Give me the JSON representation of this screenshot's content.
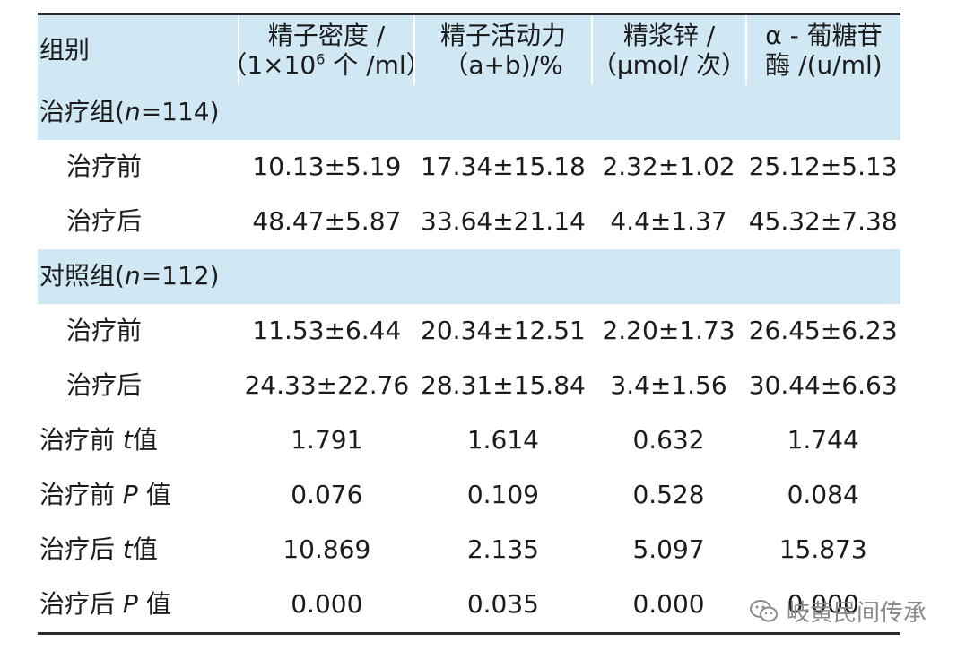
{
  "table": {
    "header": {
      "group": "组别",
      "col1_line1": "精子密度 /",
      "col1_line2_prefix": "（1×10",
      "col1_exp": "6",
      "col1_line2_suffix": " 个 /ml）",
      "col2_line1": "精子活动力",
      "col2_line2": "（a+b)/%",
      "col3_line1": "精浆锌 /",
      "col3_line2": "（μmol/ 次）",
      "col4_line1": "α - 葡糖苷",
      "col4_line2": "酶 /(u/ml)"
    },
    "group1": {
      "label_prefix": "治疗组(",
      "label_n": "n",
      "label_suffix": "=114)",
      "before": {
        "label": "治疗前",
        "v1": "10.13±5.19",
        "v2": "17.34±15.18",
        "v3": "2.32±1.02",
        "v4": "25.12±5.13"
      },
      "after": {
        "label": "治疗后",
        "v1": "48.47±5.87",
        "v2": "33.64±21.14",
        "v3": "4.4±1.37",
        "v4": "45.32±7.38"
      }
    },
    "group2": {
      "label_prefix": "对照组(",
      "label_n": "n",
      "label_suffix": "=112)",
      "before": {
        "label": "治疗前",
        "v1": "11.53±6.44",
        "v2": "20.34±12.51",
        "v3": "2.20±1.73",
        "v4": "26.45±6.23"
      },
      "after": {
        "label": "治疗后",
        "v1": "24.33±22.76",
        "v2": "28.31±15.84",
        "v3": "3.4±1.56",
        "v4": "30.44±6.63"
      }
    },
    "stats": {
      "before_t": {
        "label_prefix": "治疗前 ",
        "label_var": "t",
        "label_suffix": "值",
        "v1": "1.791",
        "v2": "1.614",
        "v3": "0.632",
        "v4": "1.744"
      },
      "before_p": {
        "label_prefix": "治疗前 ",
        "label_var": "P",
        "label_suffix": " 值",
        "v1": "0.076",
        "v2": "0.109",
        "v3": "0.528",
        "v4": "0.084"
      },
      "after_t": {
        "label_prefix": "治疗后 ",
        "label_var": "t",
        "label_suffix": "值",
        "v1": "10.869",
        "v2": "2.135",
        "v3": "5.097",
        "v4": "15.873"
      },
      "after_p": {
        "label_prefix": "治疗后 ",
        "label_var": "P",
        "label_suffix": " 值",
        "v1": "0.000",
        "v2": "0.035",
        "v3": "0.000",
        "v4": "0.000"
      }
    }
  },
  "watermark": {
    "text": "岐黄民间传承",
    "icon": "wechat-icon"
  }
}
